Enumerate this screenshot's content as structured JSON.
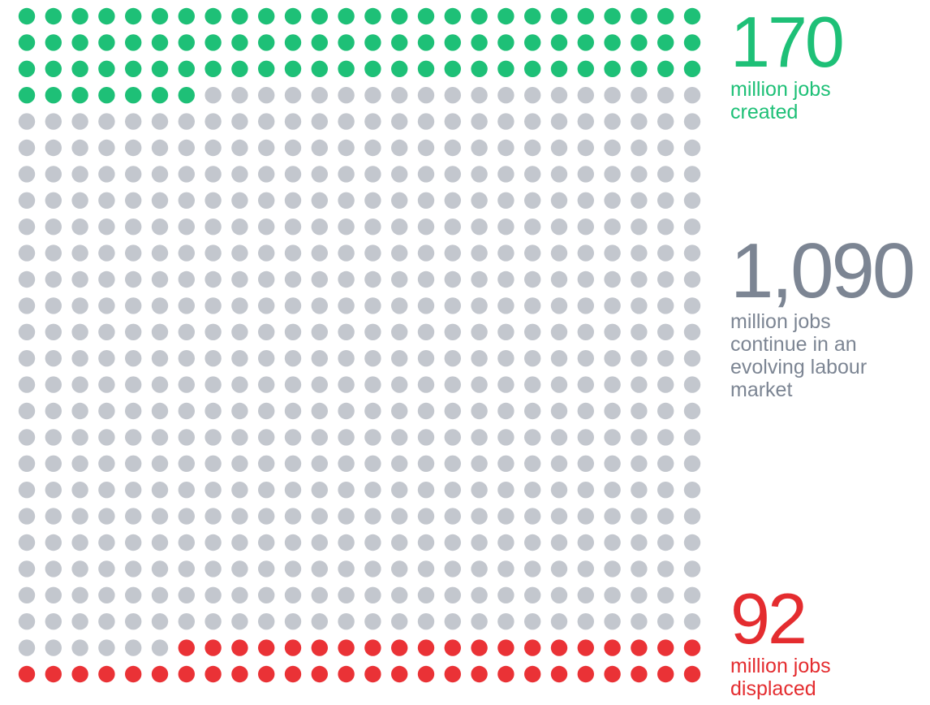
{
  "chart_data": {
    "type": "waffle",
    "columns": 26,
    "rows": 26,
    "total_dots": 676,
    "series": [
      {
        "name": "created",
        "dots": 85,
        "value": "170",
        "label": "million jobs\ncreated",
        "color": "#1ec077"
      },
      {
        "name": "continue",
        "dots": 545,
        "value": "1,090",
        "label": "million jobs\ncontinue in an\nevolving labour\nmarket",
        "color": "#c3c7ce"
      },
      {
        "name": "displaced",
        "dots": 46,
        "value": "92",
        "label": "million jobs\ndisplaced",
        "color": "#ea3236"
      }
    ],
    "text_colors": {
      "created": "#1ec077",
      "continue": "#7c8593",
      "displaced": "#e42c2f"
    }
  }
}
